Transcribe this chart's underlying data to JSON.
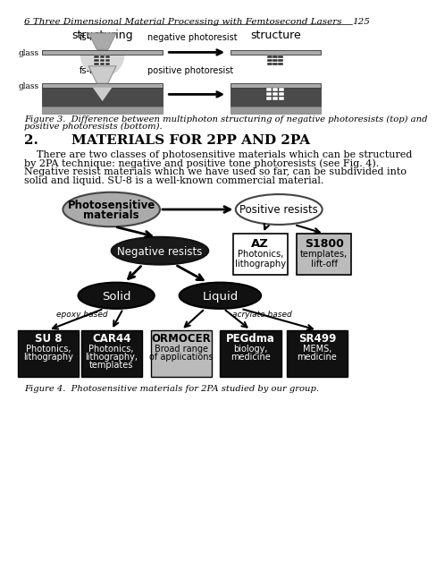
{
  "header_italic": "6 Three Dimensional Material Processing with Femtosecond Lasers",
  "page_num": "125",
  "structuring_label": "structuring",
  "structure_label": "structure",
  "fig3_cap1": "Figure 3.  Difference between multiphoton structuring of negative photoresists (top) and",
  "fig3_cap2": "positive photoresists (bottom).",
  "section_num": "2.",
  "section_title": "MATERIALS FOR 2PP AND 2PA",
  "body_lines": [
    "    There are two classes of photosensitive materials which can be structured",
    "by 2PA technique: negative and positive tone photoresists (see Fig. 4).",
    "Negative resist materials which we have used so far, can be subdivided into",
    "solid and liquid. SU-8 is a well-known commercial material."
  ],
  "fig4_cap": "Figure 4.  Photosensitive materials for 2PA studied by our group.",
  "bg": "#ffffff",
  "black": "#000000",
  "dark_gray": "#333333",
  "mid_gray": "#888888",
  "light_gray": "#aaaaaa",
  "near_black": "#111111",
  "silver": "#bbbbbb",
  "charcoal": "#555555"
}
